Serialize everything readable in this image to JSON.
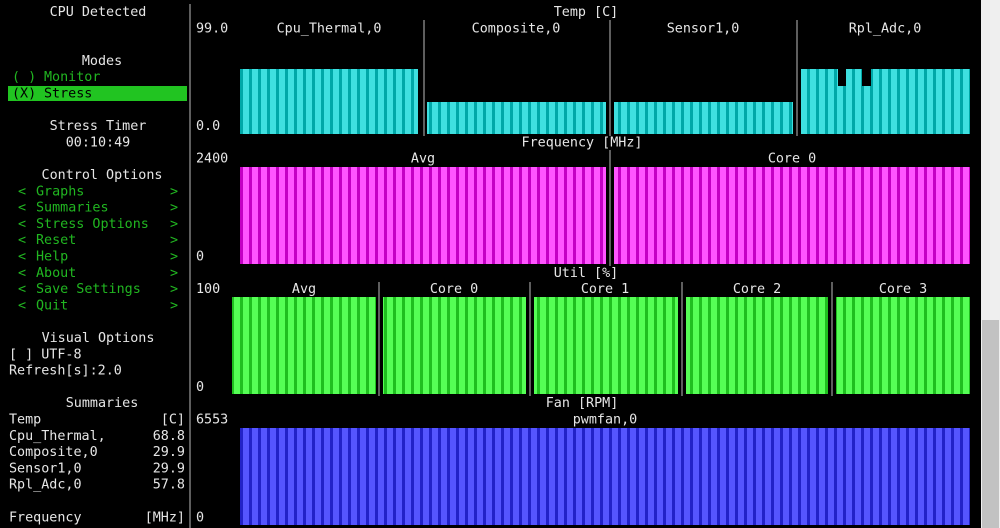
{
  "sidebar": {
    "cpu_detected": "CPU Detected",
    "modes": {
      "title": "Modes",
      "options": [
        {
          "marker": "( )",
          "label": "Monitor"
        },
        {
          "marker": "(X)",
          "label": "Stress"
        }
      ]
    },
    "stress_timer": {
      "title": "Stress Timer",
      "value": "00:10:49"
    },
    "control_options": {
      "title": "Control Options",
      "arrows": [
        "<",
        ">"
      ],
      "items": [
        "Graphs",
        "Summaries",
        "Stress Options",
        "Reset",
        "Help",
        "About",
        "Save Settings",
        "Quit"
      ]
    },
    "visual_options": {
      "title": "Visual Options",
      "utf8": "[ ] UTF-8",
      "refresh": "Refresh[s]:2.0"
    },
    "summaries": {
      "title": "Summaries",
      "rows": [
        [
          "Temp",
          "[C]"
        ],
        [
          "Cpu_Thermal,",
          "68.8"
        ],
        [
          "Composite,0",
          "29.9"
        ],
        [
          "Sensor1,0",
          "29.9"
        ],
        [
          "Rpl_Adc,0",
          "57.8"
        ],
        [
          "Frequency",
          "[MHz]"
        ]
      ]
    }
  },
  "graphs": [
    {
      "title": "Temp [C]",
      "ymax": "99.0",
      "ymin": "0.0",
      "panels": [
        "Cpu_Thermal,0",
        "Composite,0",
        "Sensor1,0",
        "Rpl_Adc,0"
      ]
    },
    {
      "title": "Frequency [MHz]",
      "ymax": "2400",
      "ymin": "0",
      "panels": [
        "Avg",
        "Core 0"
      ]
    },
    {
      "title": "Util [%]",
      "ymax": "100",
      "ymin": "0",
      "panels": [
        "Avg",
        "Core 0",
        "Core 1",
        "Core 2",
        "Core 3"
      ]
    },
    {
      "title": "Fan [RPM]",
      "ymax": "6553",
      "ymin": "0",
      "panels": [
        "pwmfan,0"
      ]
    }
  ]
}
